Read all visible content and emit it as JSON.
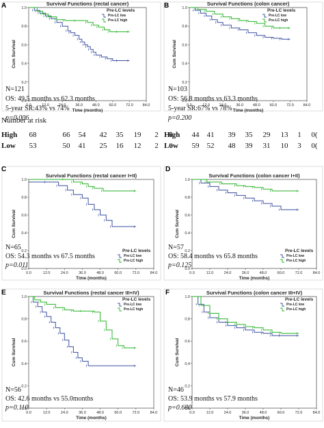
{
  "colors": {
    "low": "#3a4fa0",
    "high": "#27b227"
  },
  "legend": {
    "title": "Pre-LC levels",
    "low": "Pre-LC low",
    "high": "Pre-LC high"
  },
  "risk": {
    "title": "Number at risk",
    "rows": [
      {
        "label": "High",
        "A": [
          "68",
          "66",
          "54",
          "42",
          "35",
          "19",
          "2",
          "0"
        ],
        "B": [
          "44",
          "41",
          "39",
          "35",
          "29",
          "13",
          "1",
          "0("
        ]
      },
      {
        "label": "Low",
        "A": [
          "53",
          "50",
          "41",
          "25",
          "16",
          "12",
          "2",
          "0"
        ],
        "B": [
          "59",
          "52",
          "48",
          "39",
          "31",
          "10",
          "3",
          "0("
        ]
      }
    ]
  },
  "chart_data": [
    {
      "id": "A",
      "letter": "A",
      "type": "line",
      "title": "Survival Functions (rectal cancer)",
      "xlabel": "Time (months)",
      "ylabel": "Cum Survival",
      "xlim": [
        0,
        84
      ],
      "ylim": [
        0,
        1
      ],
      "xticks": [
        "0.0",
        "12.0",
        "24.0",
        "36.0",
        "48.0",
        "60.0",
        "72.0",
        "84.0"
      ],
      "yticks": [
        "0.0",
        "0.2",
        "0.4",
        "0.6",
        "0.8",
        "1.0"
      ],
      "stats": [
        "N=121",
        "OS: 49.5 months vs 62.3 months",
        "5-year SR:43% vs 74%",
        "p=0.006"
      ],
      "series": [
        {
          "name": "Pre-LC low",
          "group": "low",
          "x": [
            0,
            4,
            8,
            12,
            16,
            20,
            24,
            28,
            30,
            33,
            36,
            38,
            40,
            42,
            44,
            46,
            48,
            52,
            56,
            60,
            64,
            72
          ],
          "y": [
            1.0,
            0.97,
            0.94,
            0.91,
            0.88,
            0.84,
            0.8,
            0.75,
            0.73,
            0.7,
            0.66,
            0.63,
            0.6,
            0.58,
            0.55,
            0.52,
            0.49,
            0.47,
            0.45,
            0.43,
            0.43,
            0.43
          ]
        },
        {
          "name": "Pre-LC high",
          "group": "high",
          "x": [
            0,
            6,
            10,
            14,
            20,
            26,
            34,
            42,
            46,
            50,
            54,
            58,
            64,
            72
          ],
          "y": [
            1.0,
            0.96,
            0.93,
            0.9,
            0.87,
            0.86,
            0.86,
            0.84,
            0.81,
            0.79,
            0.76,
            0.74,
            0.74,
            0.74
          ]
        }
      ]
    },
    {
      "id": "B",
      "letter": "B",
      "type": "line",
      "title": "Survival Functions (colon cancer)",
      "xlabel": "Time (months)",
      "ylabel": "Cum Survival",
      "xlim": [
        0,
        84
      ],
      "ylim": [
        0,
        1
      ],
      "xticks": [
        "0.0",
        "12.0",
        "24.0",
        "36.0",
        "48.0",
        "60.0",
        "72.0",
        "84.0"
      ],
      "yticks": [
        "0.0",
        "0.2",
        "0.4",
        "0.6",
        "0.8",
        "1.0"
      ],
      "stats": [
        "N=103",
        "OS: 56.8 months vs 63.3 months",
        "5-year SR:67% vs 78%",
        "p=0.200"
      ],
      "series": [
        {
          "name": "Pre-LC low",
          "group": "low",
          "x": [
            0,
            4,
            8,
            12,
            16,
            20,
            24,
            30,
            36,
            42,
            48,
            54,
            60,
            66,
            72
          ],
          "y": [
            1.0,
            0.97,
            0.94,
            0.91,
            0.87,
            0.84,
            0.81,
            0.78,
            0.76,
            0.73,
            0.7,
            0.68,
            0.67,
            0.66,
            0.66
          ]
        },
        {
          "name": "Pre-LC high",
          "group": "high",
          "x": [
            0,
            6,
            12,
            18,
            24,
            30,
            36,
            42,
            48,
            54,
            60,
            66,
            72
          ],
          "y": [
            1.0,
            0.98,
            0.96,
            0.93,
            0.9,
            0.88,
            0.86,
            0.85,
            0.83,
            0.8,
            0.78,
            0.78,
            0.78
          ]
        }
      ]
    },
    {
      "id": "C",
      "letter": "C",
      "type": "line",
      "title": "Survival Functions (rectal cancer I+II)",
      "xlabel": "Time (months)",
      "ylabel": "Cum Survival",
      "xlim": [
        0,
        84
      ],
      "ylim": [
        0,
        1
      ],
      "xticks": [
        "0.0",
        "12.0",
        "24.0",
        "36.0",
        "48.0",
        "60.0",
        "72.0",
        "84.0"
      ],
      "yticks": [
        "0.0",
        "0.2",
        "0.4",
        "0.6",
        "0.8",
        "1.0"
      ],
      "stats": [
        "N=65",
        "OS: 54.3 months vs 67.5 months",
        "p=0.011"
      ],
      "series": [
        {
          "name": "Pre-LC low",
          "group": "low",
          "x": [
            0,
            12,
            20,
            26,
            30,
            36,
            40,
            44,
            48,
            52,
            56,
            72
          ],
          "y": [
            0.97,
            0.97,
            0.93,
            0.88,
            0.83,
            0.79,
            0.72,
            0.66,
            0.6,
            0.54,
            0.47,
            0.47
          ]
        },
        {
          "name": "Pre-LC high",
          "group": "high",
          "x": [
            0,
            24,
            30,
            36,
            40,
            44,
            50,
            72
          ],
          "y": [
            1.0,
            1.0,
            0.97,
            0.95,
            0.92,
            0.9,
            0.87,
            0.87
          ]
        }
      ]
    },
    {
      "id": "D",
      "letter": "D",
      "type": "line",
      "title": "Survival Functions (colon cancer I+II)",
      "xlabel": "Time (months)",
      "ylabel": "Cum Survival",
      "xlim": [
        0,
        84
      ],
      "ylim": [
        0,
        1
      ],
      "xticks": [
        "0.0",
        "12.0",
        "24.0",
        "36.0",
        "48.0",
        "60.0",
        "72.0",
        "84.0"
      ],
      "yticks": [
        "0.0",
        "0.2",
        "0.4",
        "0.6",
        "0.8",
        "1.0"
      ],
      "stats": [
        "N=57",
        "OS: 58.4 months vs 65.8 months",
        "p=0.125"
      ],
      "series": [
        {
          "name": "Pre-LC low",
          "group": "low",
          "x": [
            0,
            6,
            12,
            18,
            24,
            30,
            36,
            42,
            48,
            54,
            60,
            72
          ],
          "y": [
            1.0,
            0.96,
            0.92,
            0.88,
            0.85,
            0.82,
            0.79,
            0.76,
            0.73,
            0.7,
            0.66,
            0.66
          ]
        },
        {
          "name": "Pre-LC high",
          "group": "high",
          "x": [
            0,
            10,
            20,
            30,
            36,
            42,
            48,
            54,
            72
          ],
          "y": [
            1.0,
            0.97,
            0.95,
            0.93,
            0.92,
            0.91,
            0.89,
            0.87,
            0.87
          ]
        }
      ]
    },
    {
      "id": "E",
      "letter": "E",
      "type": "line",
      "title": "Survival Functions (rectal cancer III+IV)",
      "xlabel": "Time (months)",
      "ylabel": "Cum Survival",
      "xlim": [
        0,
        84
      ],
      "ylim": [
        0,
        1
      ],
      "xticks": [
        "0.0",
        "12.0",
        "24.0",
        "36.0",
        "48.0",
        "60.0",
        "72.0",
        "84.0"
      ],
      "yticks": [
        "0.0",
        "0.2",
        "0.4",
        "0.6",
        "0.8",
        "1.0"
      ],
      "stats": [
        "N=56",
        "OS: 42.6 months vs 55.0months",
        "p=0.110"
      ],
      "series": [
        {
          "name": "Pre-LC low",
          "group": "low",
          "x": [
            0,
            3,
            6,
            9,
            12,
            15,
            18,
            21,
            24,
            27,
            30,
            33,
            36,
            40,
            72
          ],
          "y": [
            1.0,
            0.95,
            0.91,
            0.86,
            0.82,
            0.77,
            0.72,
            0.67,
            0.61,
            0.55,
            0.5,
            0.45,
            0.42,
            0.38,
            0.38
          ]
        },
        {
          "name": "Pre-LC high",
          "group": "high",
          "x": [
            0,
            4,
            8,
            12,
            18,
            24,
            30,
            36,
            44,
            48,
            52,
            56,
            60,
            64,
            72
          ],
          "y": [
            1.0,
            0.97,
            0.95,
            0.93,
            0.9,
            0.88,
            0.87,
            0.87,
            0.86,
            0.78,
            0.7,
            0.62,
            0.56,
            0.54,
            0.54
          ]
        }
      ]
    },
    {
      "id": "F",
      "letter": "F",
      "type": "line",
      "title": "Survival Functions (colon cancer III+IV)",
      "xlabel": "Time (months)",
      "ylabel": "Cum Survival",
      "xlim": [
        0,
        84
      ],
      "ylim": [
        0,
        1
      ],
      "xticks": [
        "0.0",
        "12.0",
        "24.0",
        "36.0",
        "48.0",
        "60.0",
        "72.0",
        "84.0"
      ],
      "yticks": [
        "0.0",
        "0.2",
        "0.4",
        "0.6",
        "0.8",
        "1.0"
      ],
      "stats": [
        "N=46",
        "OS: 53.9 months vs 57.9 months",
        "p=0.680"
      ],
      "series": [
        {
          "name": "Pre-LC low",
          "group": "low",
          "x": [
            0,
            4,
            8,
            12,
            18,
            24,
            30,
            36,
            42,
            48,
            54,
            60,
            72
          ],
          "y": [
            1.0,
            0.93,
            0.86,
            0.81,
            0.77,
            0.74,
            0.72,
            0.7,
            0.68,
            0.67,
            0.65,
            0.65,
            0.65
          ]
        },
        {
          "name": "Pre-LC high",
          "group": "high",
          "x": [
            0,
            6,
            12,
            18,
            24,
            30,
            36,
            42,
            48,
            54,
            60,
            72
          ],
          "y": [
            1.0,
            0.92,
            0.85,
            0.8,
            0.77,
            0.75,
            0.73,
            0.72,
            0.7,
            0.68,
            0.67,
            0.67
          ]
        }
      ]
    }
  ]
}
